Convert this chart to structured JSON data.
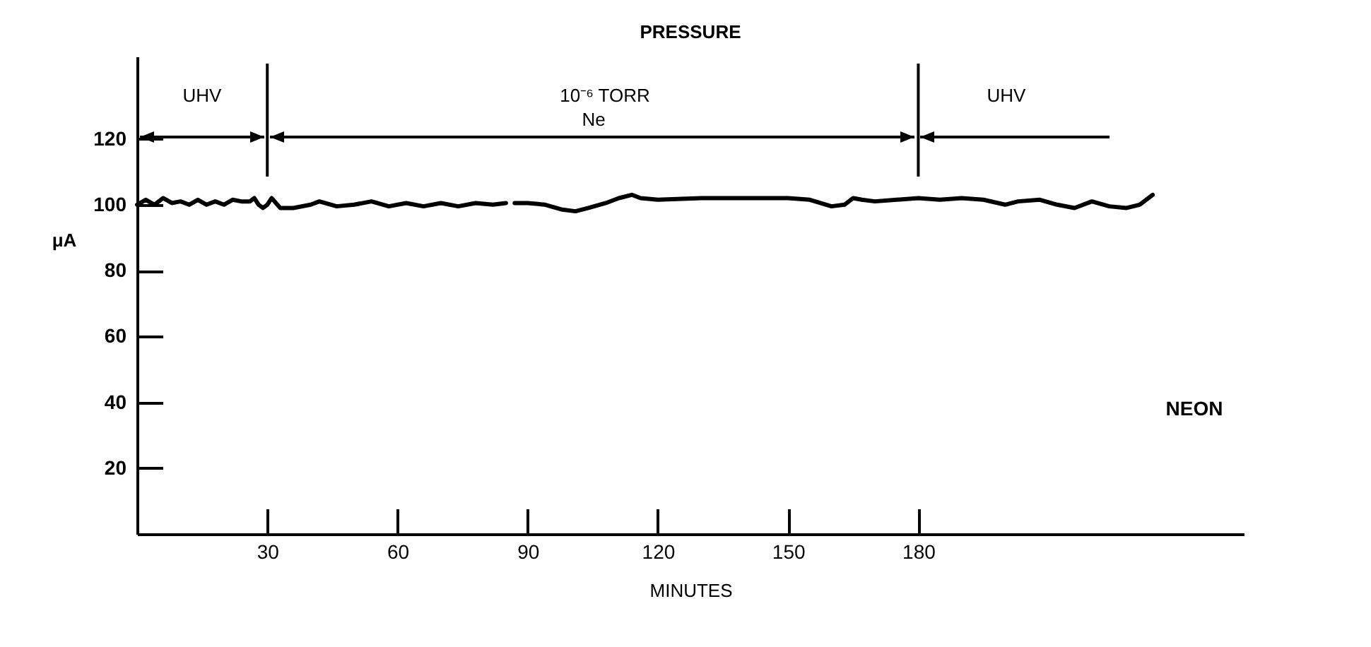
{
  "chart_data": {
    "type": "line",
    "title": "PRESSURE",
    "xlabel": "MINUTES",
    "ylabel": "μA",
    "x": [
      0,
      2,
      4,
      6,
      8,
      10,
      12,
      14,
      16,
      18,
      20,
      22,
      24,
      26,
      27,
      28,
      29,
      30,
      31,
      33,
      36,
      40,
      42,
      46,
      50,
      54,
      58,
      62,
      66,
      70,
      74,
      78,
      82,
      85,
      85.8,
      87,
      90,
      94,
      98,
      101,
      104,
      108,
      111,
      114,
      116,
      120,
      130,
      140,
      150,
      155,
      160,
      163,
      165,
      167,
      170,
      175,
      180,
      185,
      190,
      195,
      200,
      203,
      208,
      212,
      216,
      220,
      224,
      228,
      231,
      234
    ],
    "values": [
      100,
      101.5,
      100,
      102,
      100.5,
      101,
      100,
      101.5,
      100,
      101,
      100,
      101.5,
      101,
      101,
      102,
      100,
      99,
      100,
      102,
      99,
      99,
      100,
      101,
      99.5,
      100,
      101,
      99.5,
      100.5,
      99.5,
      100.5,
      99.5,
      100.5,
      100,
      100.5,
      null,
      100.5,
      100.5,
      100,
      98.5,
      98,
      99,
      100.5,
      102,
      103,
      102,
      101.5,
      102,
      102,
      102,
      101.5,
      99.5,
      100,
      102,
      101.5,
      101,
      101.5,
      102,
      101.5,
      102,
      101.5,
      100,
      101,
      101.5,
      100,
      99,
      101,
      99.5,
      99,
      100,
      103
    ],
    "color": "#000000",
    "xlim": [
      0,
      255
    ],
    "ylim": [
      0,
      145
    ],
    "xticks": [
      30,
      60,
      90,
      120,
      150,
      180
    ],
    "yticks": [
      20,
      40,
      60,
      80,
      100,
      120
    ],
    "ref_lines": [
      {
        "axis": "x",
        "value": 30
      },
      {
        "axis": "x",
        "value": 180
      }
    ],
    "annotations": [
      "UHV",
      "10⁻⁶ TORR",
      "UHV",
      "Ne",
      "NEON"
    ]
  }
}
